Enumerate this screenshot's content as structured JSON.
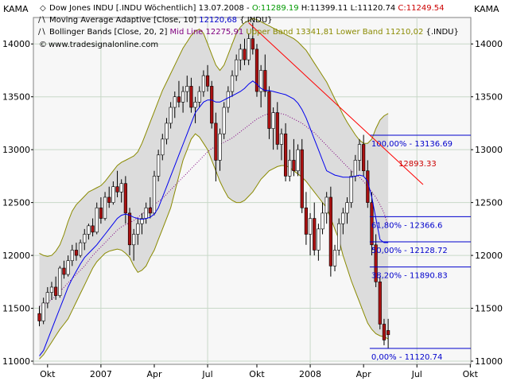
{
  "left_axis_title": "KAMA",
  "right_axis_title": "KAMA",
  "watermark": "www.tradesignalonline.com",
  "legend": [
    {
      "parts": [
        {
          "text": "Dow Jones INDU [.INDU  Wöchentlich] 13.07.2008 - ",
          "color": "#000000"
        },
        {
          "text": "O:11289.19",
          "color": "#009900"
        },
        {
          "text": " H:11399.11 L:11120.74 ",
          "color": "#000000"
        },
        {
          "text": "C:11249.54",
          "color": "#cc0000"
        }
      ]
    },
    {
      "parts": [
        {
          "text": "Moving Average Adaptive [Close, 10] ",
          "color": "#000000"
        },
        {
          "text": "12120,68",
          "color": "#0000cc"
        },
        {
          "text": " {.INDU}",
          "color": "#000000"
        }
      ]
    },
    {
      "parts": [
        {
          "text": "Bollinger Bands [Close, 20, 2] ",
          "color": "#000000"
        },
        {
          "text": "Mid Line 12275,91",
          "color": "#800080"
        },
        {
          "text": " ",
          "color": "#000000"
        },
        {
          "text": "Upper Band 13341,81",
          "color": "#8a8a00"
        },
        {
          "text": " ",
          "color": "#000000"
        },
        {
          "text": "Lower Band 11210,02",
          "color": "#8a8a00"
        },
        {
          "text": " {.INDU}",
          "color": "#000000"
        }
      ]
    }
  ],
  "chart_data": {
    "type": "candlestick",
    "x_tick_labels": [
      "Okt",
      "2007",
      "Apr",
      "Jul",
      "Okt",
      "2008",
      "Apr",
      "Jul",
      "Okt"
    ],
    "y_ticks": [
      11000,
      11500,
      12000,
      12500,
      13000,
      13500,
      14000
    ],
    "ylim": [
      10970,
      14250
    ],
    "grid": true,
    "colors": {
      "up_candle": "#ffffff",
      "down_candle": "#aa1111",
      "band_fill": "#dcdcdc",
      "band_line": "#8a8a00",
      "kama": "#0000ee",
      "mid_line": "#800080",
      "trend_line": "#ff0000",
      "fib_line": "#0000cc"
    },
    "fibonacci_levels": [
      {
        "label": "100,00% - 13136.69",
        "value": 13136.69
      },
      {
        "label": "61,80% - 12366.6",
        "value": 12366.6
      },
      {
        "label": "50,00% - 12128.72",
        "value": 12128.72
      },
      {
        "label": "38,20% - 11890.83",
        "value": 11890.83
      },
      {
        "label": "0,00% - 11120.74",
        "value": 11120.74
      }
    ],
    "trendline_label": "12893.33",
    "ohlc": [
      [
        11450,
        11520,
        11330,
        11380
      ],
      [
        11380,
        11600,
        11350,
        11550
      ],
      [
        11550,
        11700,
        11500,
        11650
      ],
      [
        11650,
        11750,
        11580,
        11700
      ],
      [
        11700,
        11800,
        11580,
        11620
      ],
      [
        11620,
        11900,
        11600,
        11880
      ],
      [
        11880,
        11950,
        11780,
        11820
      ],
      [
        11820,
        12000,
        11800,
        11950
      ],
      [
        11950,
        12100,
        11900,
        12050
      ],
      [
        12050,
        12120,
        11950,
        12000
      ],
      [
        12000,
        12150,
        11980,
        12120
      ],
      [
        12120,
        12250,
        12050,
        12200
      ],
      [
        12200,
        12300,
        12150,
        12280
      ],
      [
        12280,
        12350,
        12180,
        12220
      ],
      [
        12220,
        12500,
        12200,
        12450
      ],
      [
        12450,
        12550,
        12300,
        12350
      ],
      [
        12350,
        12600,
        12330,
        12550
      ],
      [
        12550,
        12650,
        12450,
        12500
      ],
      [
        12500,
        12700,
        12480,
        12650
      ],
      [
        12650,
        12800,
        12550,
        12600
      ],
      [
        12600,
        12720,
        12500,
        12680
      ],
      [
        12680,
        12750,
        12300,
        12400
      ],
      [
        12400,
        12450,
        12000,
        12100
      ],
      [
        12100,
        12250,
        11950,
        12200
      ],
      [
        12200,
        12350,
        12100,
        12300
      ],
      [
        12300,
        12400,
        12200,
        12350
      ],
      [
        12350,
        12500,
        12300,
        12450
      ],
      [
        12450,
        12550,
        12350,
        12400
      ],
      [
        12400,
        12800,
        12380,
        12750
      ],
      [
        12750,
        13000,
        12700,
        12950
      ],
      [
        12950,
        13150,
        12900,
        13100
      ],
      [
        13100,
        13300,
        13050,
        13250
      ],
      [
        13250,
        13450,
        13200,
        13400
      ],
      [
        13400,
        13550,
        13300,
        13500
      ],
      [
        13500,
        13650,
        13400,
        13450
      ],
      [
        13450,
        13600,
        13350,
        13550
      ],
      [
        13550,
        13700,
        13450,
        13600
      ],
      [
        13600,
        13680,
        13350,
        13400
      ],
      [
        13400,
        13500,
        13250,
        13450
      ],
      [
        13450,
        13600,
        13400,
        13550
      ],
      [
        13550,
        13750,
        13500,
        13700
      ],
      [
        13700,
        13800,
        13550,
        13600
      ],
      [
        13600,
        13650,
        13200,
        13250
      ],
      [
        13250,
        13350,
        12700,
        12900
      ],
      [
        12900,
        13200,
        12800,
        13150
      ],
      [
        13150,
        13450,
        13100,
        13400
      ],
      [
        13400,
        13600,
        13350,
        13550
      ],
      [
        13550,
        13750,
        13500,
        13700
      ],
      [
        13700,
        13900,
        13650,
        13850
      ],
      [
        13850,
        14000,
        13750,
        13950
      ],
      [
        13950,
        14050,
        13800,
        13850
      ],
      [
        13850,
        14100,
        13800,
        14050
      ],
      [
        14050,
        14200,
        13900,
        13950
      ],
      [
        13950,
        14000,
        13500,
        13550
      ],
      [
        13550,
        13800,
        13400,
        13750
      ],
      [
        13750,
        13900,
        13500,
        13550
      ],
      [
        13550,
        13600,
        13100,
        13200
      ],
      [
        13200,
        13400,
        13000,
        13350
      ],
      [
        13350,
        13450,
        13000,
        13050
      ],
      [
        13050,
        13200,
        12900,
        13150
      ],
      [
        13150,
        13250,
        12700,
        12750
      ],
      [
        12750,
        13000,
        12700,
        12900
      ],
      [
        12900,
        13100,
        12750,
        12800
      ],
      [
        12800,
        13050,
        12750,
        13000
      ],
      [
        13000,
        13100,
        12400,
        12450
      ],
      [
        12450,
        12600,
        12100,
        12200
      ],
      [
        12200,
        12400,
        12000,
        12350
      ],
      [
        12350,
        12500,
        12000,
        12050
      ],
      [
        12050,
        12300,
        11950,
        12250
      ],
      [
        12250,
        12500,
        12200,
        12400
      ],
      [
        12400,
        12600,
        12300,
        12550
      ],
      [
        12550,
        12650,
        11800,
        11900
      ],
      [
        11900,
        12100,
        11850,
        12050
      ],
      [
        12050,
        12350,
        12000,
        12300
      ],
      [
        12300,
        12450,
        12200,
        12400
      ],
      [
        12400,
        12550,
        12300,
        12500
      ],
      [
        12500,
        12800,
        12450,
        12750
      ],
      [
        12750,
        12950,
        12700,
        12900
      ],
      [
        12900,
        13100,
        12800,
        13050
      ],
      [
        13050,
        13140,
        12750,
        12800
      ],
      [
        12800,
        12900,
        12450,
        12500
      ],
      [
        12500,
        12600,
        12000,
        12100
      ],
      [
        12100,
        12200,
        11700,
        11750
      ],
      [
        11750,
        11800,
        11300,
        11350
      ],
      [
        11350,
        11400,
        11150,
        11200
      ],
      [
        11290,
        11400,
        11120,
        11250
      ]
    ],
    "mid_line": [
      11520,
      11530,
      11560,
      11580,
      11620,
      11660,
      11700,
      11740,
      11780,
      11820,
      11860,
      11900,
      11950,
      12000,
      12040,
      12080,
      12120,
      12160,
      12200,
      12240,
      12270,
      12290,
      12310,
      12330,
      12360,
      12390,
      12420,
      12450,
      12480,
      12510,
      12540,
      12580,
      12620,
      12660,
      12700,
      12740,
      12780,
      12820,
      12860,
      12900,
      12940,
      12980,
      13010,
      13030,
      13050,
      13070,
      13090,
      13110,
      13140,
      13170,
      13200,
      13230,
      13260,
      13290,
      13310,
      13330,
      13340,
      13350,
      13350,
      13340,
      13330,
      13310,
      13290,
      13270,
      13250,
      13220,
      13190,
      13160,
      13120,
      13080,
      13040,
      13000,
      12960,
      12920,
      12880,
      12840,
      12800,
      12770,
      12740,
      12700,
      12650,
      12600,
      12550,
      12480,
      12400,
      12276
    ],
    "kama": [
      11050,
      11100,
      11200,
      11300,
      11400,
      11500,
      11600,
      11700,
      11780,
      11850,
      11920,
      11980,
      12020,
      12060,
      12100,
      12150,
      12200,
      12250,
      12300,
      12350,
      12380,
      12390,
      12380,
      12360,
      12350,
      12340,
      12350,
      12360,
      12390,
      12450,
      12550,
      12650,
      12750,
      12850,
      12950,
      13050,
      13150,
      13250,
      13350,
      13400,
      13450,
      13470,
      13470,
      13450,
      13450,
      13470,
      13490,
      13510,
      13530,
      13550,
      13580,
      13620,
      13650,
      13620,
      13580,
      13560,
      13560,
      13550,
      13540,
      13530,
      13520,
      13500,
      13480,
      13440,
      13380,
      13300,
      13200,
      13100,
      13000,
      12900,
      12800,
      12780,
      12760,
      12750,
      12740,
      12740,
      12740,
      12750,
      12760,
      12750,
      12700,
      12550,
      12350,
      12150,
      12121,
      12121
    ],
    "upper_band": [
      12020,
      12000,
      11990,
      12000,
      12040,
      12100,
      12200,
      12320,
      12420,
      12480,
      12520,
      12560,
      12600,
      12620,
      12640,
      12660,
      12700,
      12750,
      12800,
      12850,
      12880,
      12900,
      12920,
      12940,
      12980,
      13060,
      13160,
      13260,
      13360,
      13460,
      13560,
      13640,
      13720,
      13800,
      13880,
      13960,
      14020,
      14080,
      14120,
      14140,
      14100,
      14000,
      13900,
      13800,
      13750,
      13800,
      13900,
      14000,
      14100,
      14160,
      14200,
      14220,
      14240,
      14230,
      14210,
      14190,
      14170,
      14150,
      14130,
      14110,
      14090,
      14070,
      14050,
      14020,
      13980,
      13940,
      13880,
      13820,
      13760,
      13700,
      13640,
      13560,
      13480,
      13410,
      13330,
      13260,
      13200,
      13140,
      13090,
      13060,
      13060,
      13100,
      13200,
      13280,
      13320,
      13342
    ],
    "lower_band": [
      11020,
      11060,
      11120,
      11180,
      11240,
      11300,
      11350,
      11400,
      11480,
      11560,
      11640,
      11720,
      11800,
      11880,
      11940,
      11980,
      12020,
      12040,
      12050,
      12060,
      12050,
      12020,
      11980,
      11900,
      11840,
      11860,
      11900,
      11980,
      12050,
      12150,
      12250,
      12350,
      12450,
      12600,
      12750,
      12900,
      13000,
      13100,
      13150,
      13120,
      13060,
      13000,
      12900,
      12800,
      12700,
      12620,
      12550,
      12520,
      12500,
      12500,
      12520,
      12560,
      12600,
      12660,
      12720,
      12760,
      12800,
      12820,
      12840,
      12850,
      12850,
      12830,
      12800,
      12770,
      12740,
      12700,
      12650,
      12600,
      12550,
      12500,
      12450,
      12350,
      12250,
      12150,
      12000,
      11880,
      11760,
      11660,
      11560,
      11460,
      11360,
      11300,
      11260,
      11240,
      11230,
      11210
    ]
  }
}
